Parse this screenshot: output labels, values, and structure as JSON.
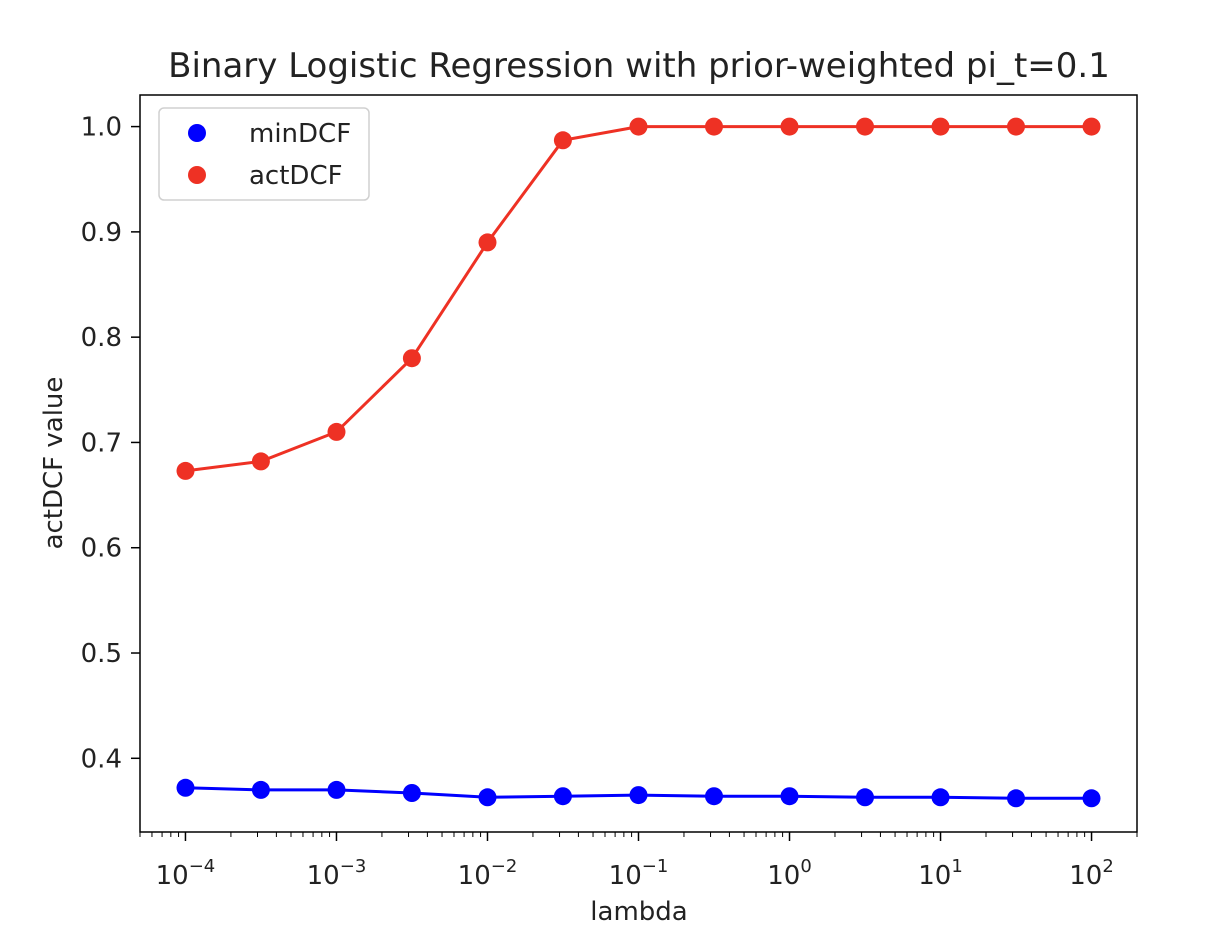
{
  "chart_data": {
    "type": "line",
    "title": "Binary Logistic Regression with prior-weighted pi_t=0.1",
    "xlabel": "lambda",
    "ylabel": "actDCF value",
    "xscale": "log",
    "xlim": [
      5e-05,
      200
    ],
    "ylim": [
      0.33,
      1.03
    ],
    "grid": false,
    "legend_position": "top-left",
    "x": [
      0.0001,
      0.000316,
      0.001,
      0.00316,
      0.01,
      0.0316,
      0.1,
      0.316,
      1,
      3.16,
      10,
      31.6,
      100
    ],
    "x_ticks": [
      {
        "value": 0.0001,
        "base": "10",
        "exp": "−4"
      },
      {
        "value": 0.001,
        "base": "10",
        "exp": "−3"
      },
      {
        "value": 0.01,
        "base": "10",
        "exp": "−2"
      },
      {
        "value": 0.1,
        "base": "10",
        "exp": "−1"
      },
      {
        "value": 1,
        "base": "10",
        "exp": "0"
      },
      {
        "value": 10,
        "base": "10",
        "exp": "1"
      },
      {
        "value": 100,
        "base": "10",
        "exp": "2"
      }
    ],
    "y_ticks": [
      {
        "value": 0.4,
        "label": "0.4"
      },
      {
        "value": 0.5,
        "label": "0.5"
      },
      {
        "value": 0.6,
        "label": "0.6"
      },
      {
        "value": 0.7,
        "label": "0.7"
      },
      {
        "value": 0.8,
        "label": "0.8"
      },
      {
        "value": 0.9,
        "label": "0.9"
      },
      {
        "value": 1.0,
        "label": "1.0"
      }
    ],
    "series": [
      {
        "name": "minDCF",
        "color": "#0000ff",
        "values": [
          0.372,
          0.37,
          0.37,
          0.367,
          0.363,
          0.364,
          0.365,
          0.364,
          0.364,
          0.363,
          0.363,
          0.362,
          0.362
        ]
      },
      {
        "name": "actDCF",
        "color": "#ee3124",
        "values": [
          0.673,
          0.682,
          0.71,
          0.78,
          0.89,
          0.987,
          1.0,
          1.0,
          1.0,
          1.0,
          1.0,
          1.0,
          1.0
        ]
      }
    ]
  }
}
